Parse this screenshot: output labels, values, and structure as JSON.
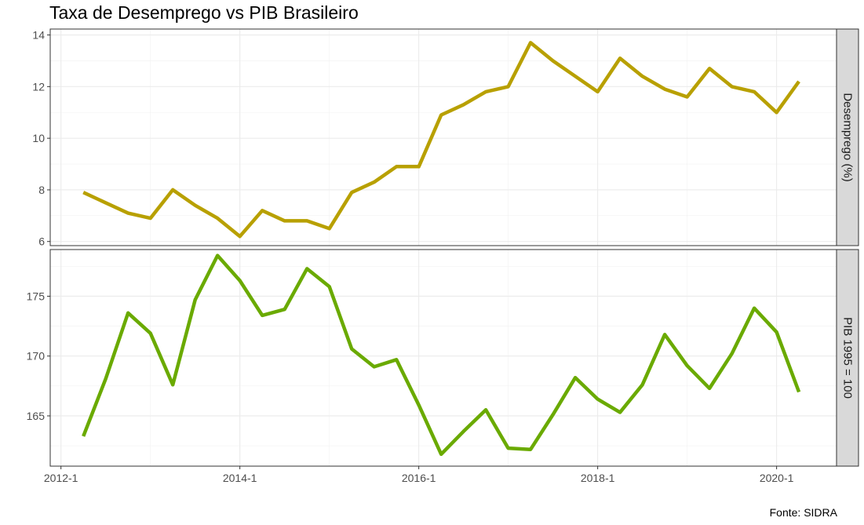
{
  "chart_data": {
    "type": "line",
    "title": "Taxa de Desemprego vs PIB Brasileiro",
    "caption": "Fonte: SIDRA",
    "x_tick_labels": [
      "2012-1",
      "2014-1",
      "2016-1",
      "2018-1",
      "2020-1"
    ],
    "x_tick_positions": [
      2012.0,
      2014.0,
      2016.0,
      2018.0,
      2020.0
    ],
    "xlim": [
      2011.88,
      2020.67
    ],
    "grid": true,
    "panels": [
      {
        "strip": "Desemprego (%)",
        "color": "#b8a000",
        "ylim": [
          5.84,
          14.23
        ],
        "yticks": [
          6,
          8,
          10,
          12,
          14
        ],
        "x": [
          2012.25,
          2012.5,
          2012.75,
          2013.0,
          2013.25,
          2013.5,
          2013.75,
          2014.0,
          2014.25,
          2014.5,
          2014.75,
          2015.0,
          2015.25,
          2015.5,
          2015.75,
          2016.0,
          2016.25,
          2016.5,
          2016.75,
          2017.0,
          2017.25,
          2017.5,
          2017.75,
          2018.0,
          2018.25,
          2018.5,
          2018.75,
          2019.0,
          2019.25,
          2019.5,
          2019.75,
          2020.0,
          2020.25
        ],
        "values": [
          7.9,
          7.5,
          7.1,
          6.9,
          8.0,
          7.4,
          6.9,
          6.2,
          7.2,
          6.8,
          6.8,
          6.5,
          7.9,
          8.3,
          8.9,
          8.9,
          10.9,
          11.3,
          11.8,
          12.0,
          13.7,
          13.0,
          12.4,
          11.8,
          13.1,
          12.4,
          11.9,
          11.6,
          12.7,
          12.0,
          11.8,
          11.0,
          12.2
        ]
      },
      {
        "strip": "PIB 1995 = 100",
        "color": "#6aaa00",
        "ylim": [
          160.8,
          178.9
        ],
        "yticks": [
          165,
          170,
          175
        ],
        "x": [
          2012.25,
          2012.5,
          2012.75,
          2013.0,
          2013.25,
          2013.5,
          2013.75,
          2014.0,
          2014.25,
          2014.5,
          2014.75,
          2015.0,
          2015.25,
          2015.5,
          2015.75,
          2016.0,
          2016.25,
          2016.5,
          2016.75,
          2017.0,
          2017.25,
          2017.5,
          2017.75,
          2018.0,
          2018.25,
          2018.5,
          2018.75,
          2019.0,
          2019.25,
          2019.5,
          2019.75,
          2020.0,
          2020.25
        ],
        "values": [
          163.3,
          168.1,
          173.6,
          171.9,
          167.6,
          174.7,
          178.4,
          176.3,
          173.4,
          173.9,
          177.3,
          175.8,
          170.6,
          169.1,
          169.7,
          165.9,
          161.8,
          163.7,
          165.5,
          162.3,
          162.2,
          165.1,
          168.2,
          166.4,
          165.3,
          167.6,
          171.8,
          169.2,
          167.3,
          170.2,
          174.0,
          172.0,
          167.0
        ]
      }
    ]
  }
}
